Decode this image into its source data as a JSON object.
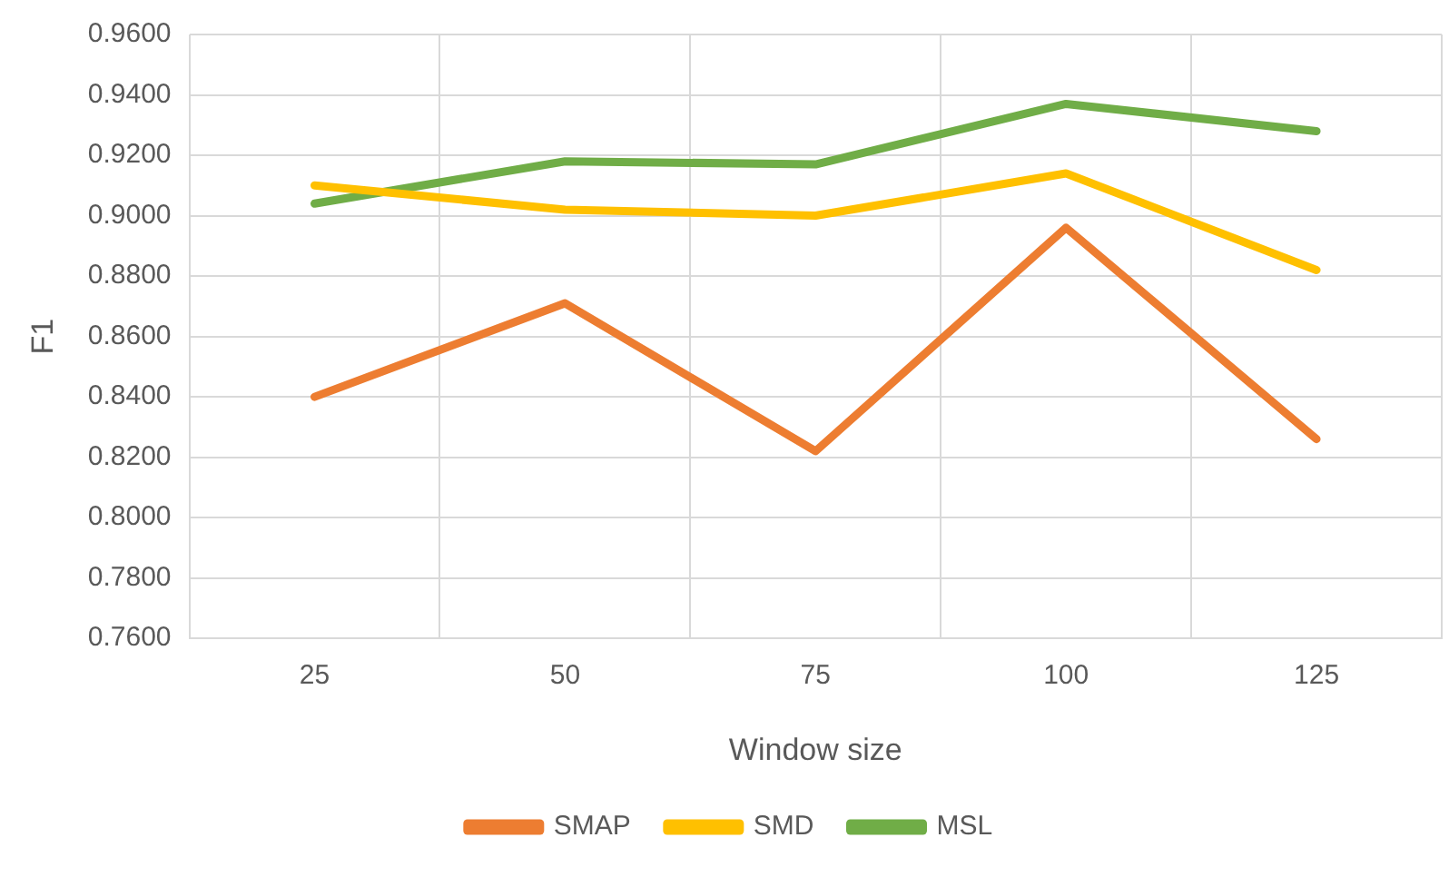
{
  "chart_data": {
    "type": "line",
    "xlabel": "Window size",
    "ylabel": "F1",
    "categories": [
      "25",
      "50",
      "75",
      "100",
      "125"
    ],
    "series": [
      {
        "name": "SMAP",
        "color": "#ed7d31",
        "values": [
          0.84,
          0.871,
          0.822,
          0.896,
          0.826
        ]
      },
      {
        "name": "SMD",
        "color": "#ffc000",
        "values": [
          0.91,
          0.902,
          0.9,
          0.914,
          0.882
        ]
      },
      {
        "name": "MSL",
        "color": "#70ad47",
        "values": [
          0.904,
          0.918,
          0.917,
          0.937,
          0.928
        ]
      }
    ],
    "ylim": [
      0.76,
      0.96
    ],
    "yticks": [
      {
        "value": 0.76,
        "label": "0.7600"
      },
      {
        "value": 0.78,
        "label": "0.7800"
      },
      {
        "value": 0.8,
        "label": "0.8000"
      },
      {
        "value": 0.82,
        "label": "0.8200"
      },
      {
        "value": 0.84,
        "label": "0.8400"
      },
      {
        "value": 0.86,
        "label": "0.8600"
      },
      {
        "value": 0.88,
        "label": "0.8800"
      },
      {
        "value": 0.9,
        "label": "0.9000"
      },
      {
        "value": 0.92,
        "label": "0.9200"
      },
      {
        "value": 0.94,
        "label": "0.9400"
      },
      {
        "value": 0.96,
        "label": "0.9600"
      }
    ],
    "grid": true,
    "legend": "bottom",
    "marker": "none",
    "line_style": "solid"
  }
}
